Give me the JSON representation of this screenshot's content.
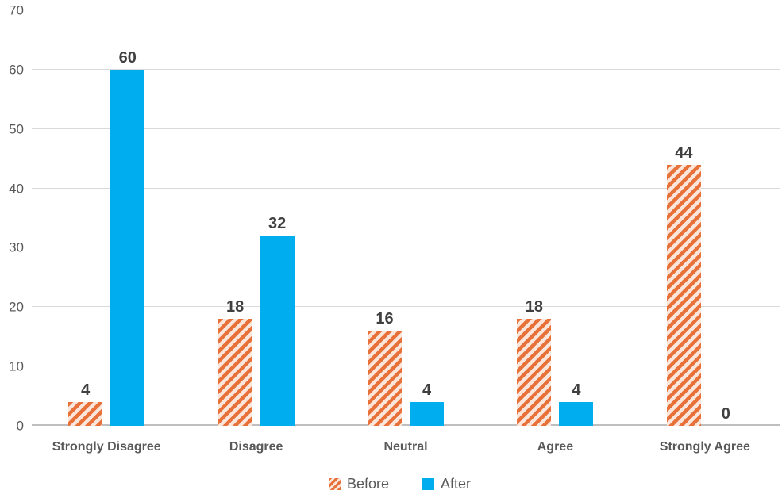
{
  "chart_data": {
    "type": "bar",
    "title": "",
    "xlabel": "",
    "ylabel": "",
    "categories": [
      "Strongly Disagree",
      "Disagree",
      "Neutral",
      "Agree",
      "Strongly Agree"
    ],
    "series": [
      {
        "name": "Before",
        "values": [
          4,
          18,
          16,
          18,
          44
        ],
        "pattern": "diagonal-hatch",
        "stripe_color": "#E8713A",
        "fill_color": "#FCE6DB"
      },
      {
        "name": "After",
        "values": [
          60,
          32,
          4,
          4,
          0
        ],
        "pattern": "solid",
        "fill_color": "#00AEEF"
      }
    ],
    "ylim": [
      0,
      70
    ],
    "yticks": [
      0,
      10,
      20,
      30,
      40,
      50,
      60,
      70
    ],
    "grid": true,
    "data_labels": true,
    "legend_position": "bottom"
  },
  "colors": {
    "background": "#FFFFFF",
    "gridline": "#D9D9D9",
    "axis_line": "#BFBFBF",
    "y_tick_label": "#595959",
    "category_label": "#595959",
    "data_label": "#404040",
    "legend_text": "#595959"
  }
}
